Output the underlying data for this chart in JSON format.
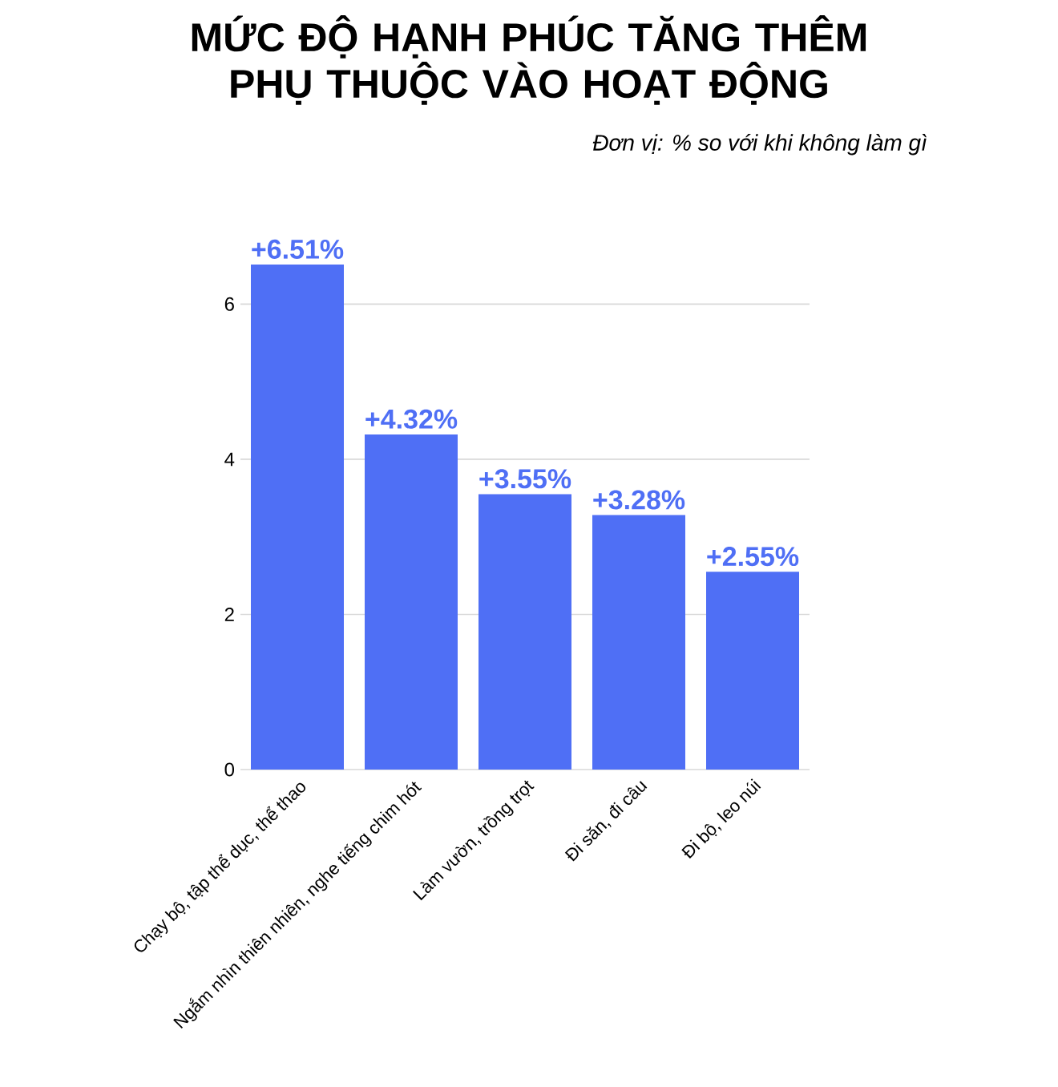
{
  "chart_data": {
    "type": "bar",
    "title": "MỨC ĐỘ HẠNH PHÚC TĂNG THÊM PHỤ THUỘC VÀO HOẠT ĐỘNG",
    "subtitle": "Đơn vị: % so với khi không làm gì",
    "categories": [
      "Chạy bộ, tập thể dục, thể thao",
      "Ngắm nhìn thiên nhiên, nghe tiếng chim hót",
      "Làm vườn, trồng trọt",
      "Đi săn, đi câu",
      "Đi bộ, leo núi"
    ],
    "values": [
      6.51,
      4.32,
      3.55,
      3.28,
      2.55
    ],
    "value_labels": [
      "+6.51%",
      "+4.32%",
      "+3.55%",
      "+3.28%",
      "+2.55%"
    ],
    "color": "#4f6ff5",
    "ylim": [
      0,
      6.51
    ],
    "yticks": [
      0,
      2,
      4,
      6
    ],
    "grid": "y"
  }
}
